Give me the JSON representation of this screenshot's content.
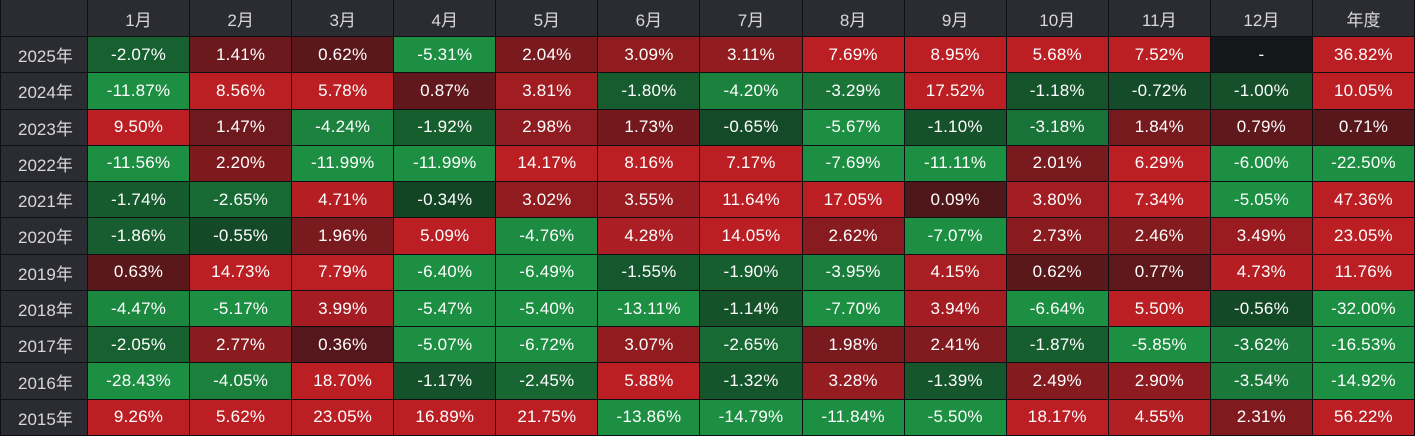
{
  "chart_data": {
    "type": "heatmap",
    "corner": "",
    "columns": [
      "1月",
      "2月",
      "3月",
      "4月",
      "5月",
      "6月",
      "7月",
      "8月",
      "9月",
      "10月",
      "11月",
      "12月",
      "年度"
    ],
    "rows": [
      {
        "label": "2025年",
        "values": [
          "-2.07%",
          "1.41%",
          "0.62%",
          "-5.31%",
          "2.04%",
          "3.09%",
          "3.11%",
          "7.69%",
          "8.95%",
          "5.68%",
          "7.52%",
          "-",
          "36.82%"
        ]
      },
      {
        "label": "2024年",
        "values": [
          "-11.87%",
          "8.56%",
          "5.78%",
          "0.87%",
          "3.81%",
          "-1.80%",
          "-4.20%",
          "-3.29%",
          "17.52%",
          "-1.18%",
          "-0.72%",
          "-1.00%",
          "10.05%"
        ]
      },
      {
        "label": "2023年",
        "values": [
          "9.50%",
          "1.47%",
          "-4.24%",
          "-1.92%",
          "2.98%",
          "1.73%",
          "-0.65%",
          "-5.67%",
          "-1.10%",
          "-3.18%",
          "1.84%",
          "0.79%",
          "0.71%"
        ]
      },
      {
        "label": "2022年",
        "values": [
          "-11.56%",
          "2.20%",
          "-11.99%",
          "-11.99%",
          "14.17%",
          "8.16%",
          "7.17%",
          "-7.69%",
          "-11.11%",
          "2.01%",
          "6.29%",
          "-6.00%",
          "-22.50%"
        ]
      },
      {
        "label": "2021年",
        "values": [
          "-1.74%",
          "-2.65%",
          "4.71%",
          "-0.34%",
          "3.02%",
          "3.55%",
          "11.64%",
          "17.05%",
          "0.09%",
          "3.80%",
          "7.34%",
          "-5.05%",
          "47.36%"
        ]
      },
      {
        "label": "2020年",
        "values": [
          "-1.86%",
          "-0.55%",
          "1.96%",
          "5.09%",
          "-4.76%",
          "4.28%",
          "14.05%",
          "2.62%",
          "-7.07%",
          "2.73%",
          "2.46%",
          "3.49%",
          "23.05%"
        ]
      },
      {
        "label": "2019年",
        "values": [
          "0.63%",
          "14.73%",
          "7.79%",
          "-6.40%",
          "-6.49%",
          "-1.55%",
          "-1.90%",
          "-3.95%",
          "4.15%",
          "0.62%",
          "0.77%",
          "4.73%",
          "11.76%"
        ]
      },
      {
        "label": "2018年",
        "values": [
          "-4.47%",
          "-5.17%",
          "3.99%",
          "-5.47%",
          "-5.40%",
          "-13.11%",
          "-1.14%",
          "-7.70%",
          "3.94%",
          "-6.64%",
          "5.50%",
          "-0.56%",
          "-32.00%"
        ]
      },
      {
        "label": "2017年",
        "values": [
          "-2.05%",
          "2.77%",
          "0.36%",
          "-5.07%",
          "-6.72%",
          "3.07%",
          "-2.65%",
          "1.98%",
          "2.41%",
          "-1.87%",
          "-5.85%",
          "-3.62%",
          "-16.53%"
        ]
      },
      {
        "label": "2016年",
        "values": [
          "-28.43%",
          "-4.05%",
          "18.70%",
          "-1.17%",
          "-2.45%",
          "5.88%",
          "-1.32%",
          "3.28%",
          "-1.39%",
          "2.49%",
          "2.90%",
          "-3.54%",
          "-14.92%"
        ]
      },
      {
        "label": "2015年",
        "values": [
          "9.26%",
          "5.62%",
          "23.05%",
          "16.89%",
          "21.75%",
          "-13.86%",
          "-14.79%",
          "-11.84%",
          "-5.50%",
          "18.17%",
          "4.55%",
          "2.31%",
          "56.22%"
        ]
      }
    ],
    "colors": {
      "positive_strong": "#bb1f24",
      "positive_weak": "#3a1518",
      "negative_strong": "#1d8f42",
      "negative_weak": "#11321e",
      "empty": "#16171b",
      "header_bg": "#2b2c31",
      "header_text": "#d8d8d8",
      "cell_text": "#ffffff"
    }
  }
}
